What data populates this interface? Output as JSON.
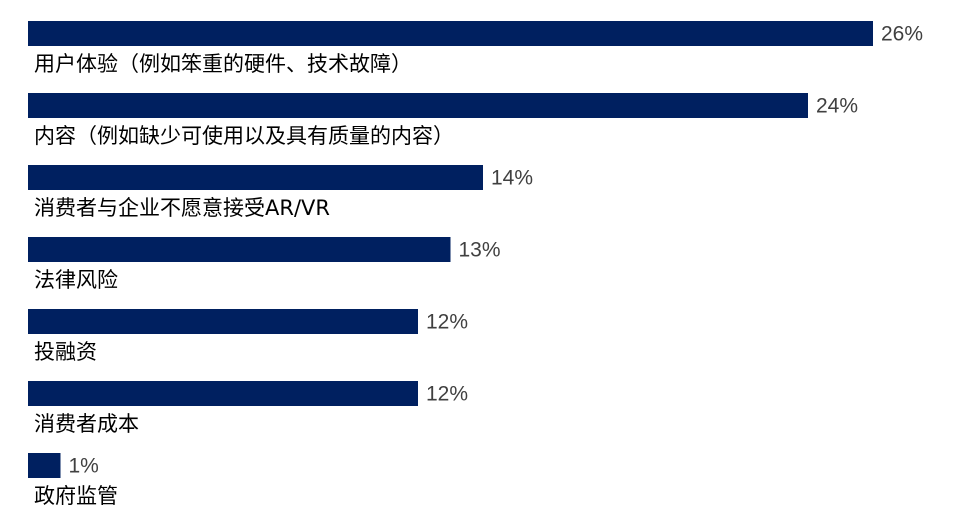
{
  "chart_data": {
    "type": "bar",
    "orientation": "horizontal",
    "bar_color": "#002060",
    "categories": [
      "用户体验（例如笨重的硬件、技术故障）",
      "内容（例如缺少可使用以及具有质量的内容）",
      "消费者与企业不愿意接受AR/VR",
      "法律风险",
      "投融资",
      "消费者成本",
      "政府监管"
    ],
    "values": [
      26,
      24,
      14,
      13,
      12,
      12,
      1
    ],
    "value_labels": [
      "26%",
      "24%",
      "14%",
      "13%",
      "12%",
      "12%",
      "1%"
    ],
    "value_unit": "%",
    "xlim": [
      0,
      26
    ],
    "title": "",
    "xlabel": "",
    "ylabel": "",
    "grid": false,
    "legend": "none"
  }
}
